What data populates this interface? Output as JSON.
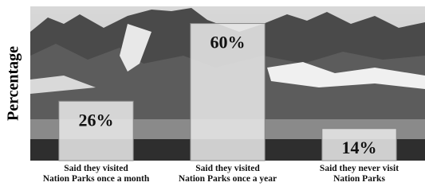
{
  "chart_data": {
    "type": "bar",
    "y_label": "Percentage",
    "categories": [
      "Said they visited\nNation Parks once a month",
      "Said they visited\nNation Parks once a year",
      "Said they never visit\nNation Parks"
    ],
    "values": [
      26,
      60,
      14
    ],
    "value_labels": [
      "26%",
      "60%",
      "14%"
    ],
    "color": "#e6e6e6",
    "ylim": [
      0,
      67.5
    ]
  }
}
